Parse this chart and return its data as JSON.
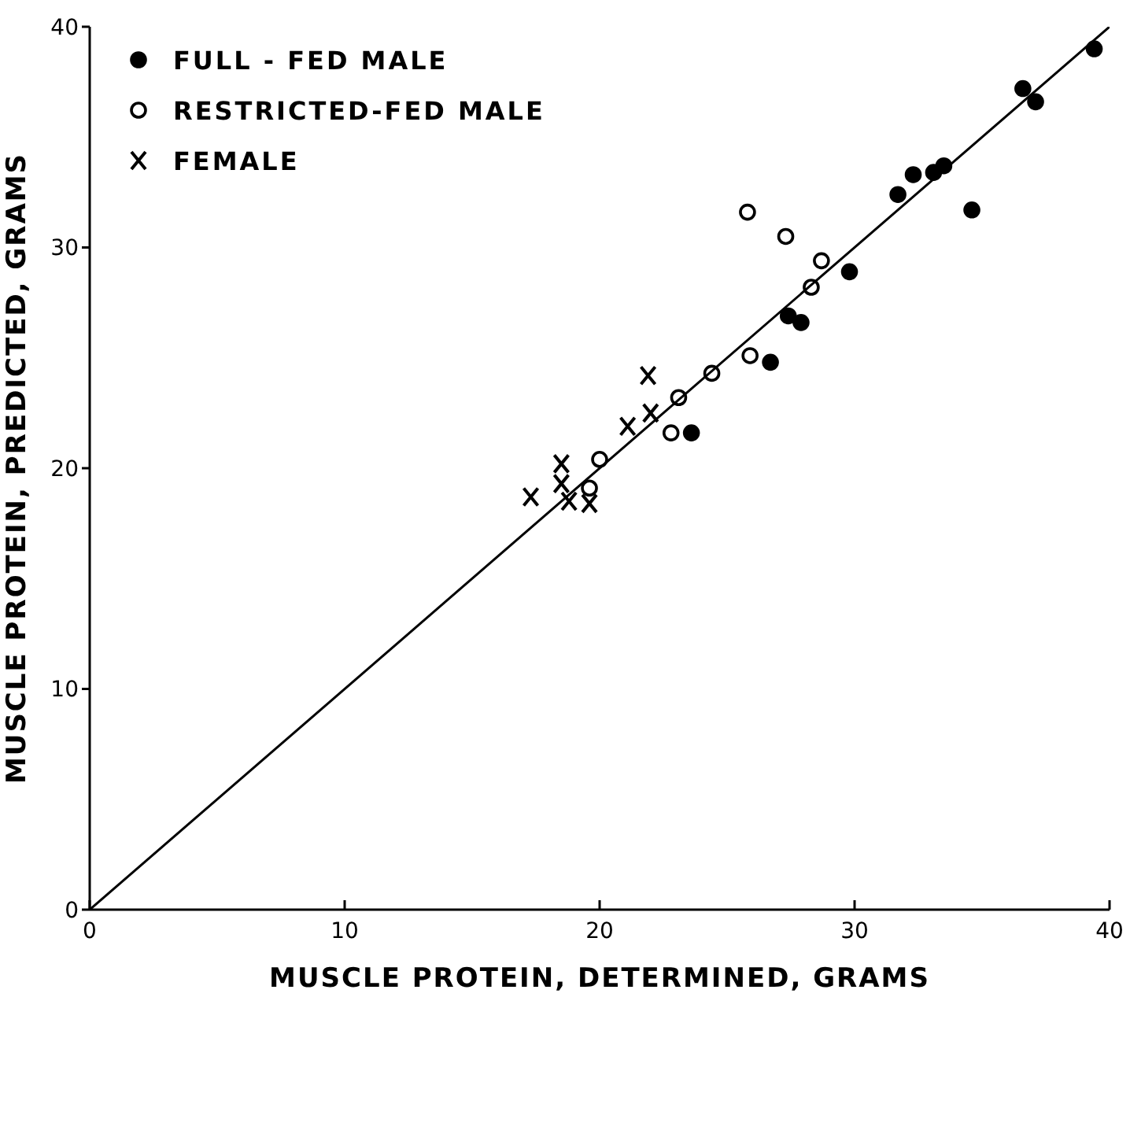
{
  "chart_data": {
    "type": "scatter",
    "xlabel": "MUSCLE PROTEIN,   DETERMINED,   GRAMS",
    "ylabel": "MUSCLE PROTEIN,   PREDICTED,   GRAMS",
    "xlim": [
      0,
      40
    ],
    "ylim": [
      0,
      40
    ],
    "xticks": [
      0,
      10,
      20,
      30,
      40
    ],
    "yticks": [
      0,
      10,
      20,
      30,
      40
    ],
    "grid": false,
    "legend": "top left",
    "series": [
      {
        "name": "FULL - FED MALE",
        "color": "#000000",
        "marker": "circle",
        "x": [
          39.4,
          36.6,
          37.1,
          31.7,
          32.3,
          33.1,
          33.5,
          34.6,
          29.8,
          27.4,
          27.9,
          26.7,
          23.6
        ],
        "values": [
          39.0,
          37.2,
          36.6,
          32.4,
          33.3,
          33.4,
          33.7,
          31.7,
          28.9,
          26.9,
          26.6,
          24.8,
          21.6
        ]
      },
      {
        "name": "RESTRICTED-FED MALE",
        "color": "#000000",
        "marker": "circle-open",
        "x": [
          25.8,
          27.3,
          28.7,
          28.3,
          25.9,
          24.4,
          23.1,
          22.8,
          20.0,
          19.6
        ],
        "values": [
          31.6,
          30.5,
          29.4,
          28.2,
          25.1,
          24.3,
          23.2,
          21.6,
          20.4,
          19.1
        ]
      },
      {
        "name": "FEMALE",
        "color": "#000000",
        "marker": "cross",
        "x": [
          21.9,
          22.0,
          21.1,
          18.5,
          18.5,
          17.3,
          18.8,
          19.6
        ],
        "values": [
          24.2,
          22.5,
          21.9,
          20.2,
          19.3,
          18.7,
          18.5,
          18.4
        ]
      },
      {
        "type": "line",
        "color": "#000000",
        "marker": "none",
        "x": [
          0,
          40
        ],
        "values": [
          0,
          40
        ]
      }
    ]
  }
}
